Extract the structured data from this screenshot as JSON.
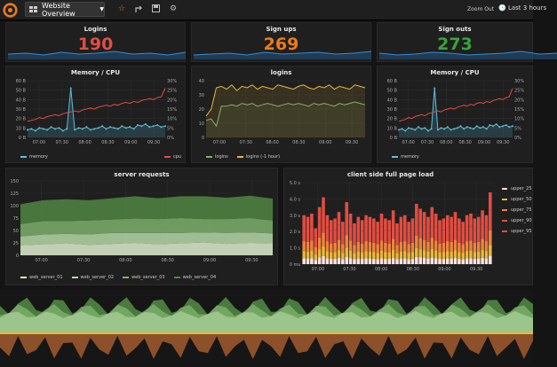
{
  "nav": {
    "dashboard_title": "Website Overview",
    "zoom_out": "Zoom Out",
    "time_range": "Last 3 hours"
  },
  "stats": [
    {
      "title": "Logins",
      "value": "190",
      "color": "#e24d42"
    },
    {
      "title": "Sign ups",
      "value": "269",
      "color": "#eb7b18"
    },
    {
      "title": "Sign outs",
      "value": "273",
      "color": "#37a537"
    }
  ],
  "chart_data": [
    {
      "type": "line",
      "title": "Memory / CPU",
      "left_axis": [
        "60 B",
        "50 B",
        "40 B",
        "30 B",
        "20 B",
        "10 B",
        "0 B"
      ],
      "right_axis": [
        "30%",
        "25%",
        "20%",
        "15%",
        "10%",
        "5%",
        "0%"
      ],
      "x_ticks": [
        "07:00",
        "07:30",
        "08:00",
        "08:30",
        "09:00",
        "09:30"
      ],
      "series": [
        {
          "name": "memory",
          "color": "#5bc0de",
          "values": [
            8,
            9,
            7,
            10,
            9,
            8,
            11,
            9,
            10,
            7,
            9,
            52,
            8,
            10,
            9,
            11,
            8,
            9,
            10,
            12,
            9,
            11,
            10,
            9,
            12,
            10,
            11,
            9,
            13,
            12,
            14,
            11,
            12,
            13,
            11,
            12
          ]
        },
        {
          "name": "cpu",
          "color": "#e24d42",
          "values": [
            17,
            18,
            19,
            21,
            20,
            22,
            23,
            24,
            23,
            25,
            26,
            27,
            28,
            27,
            29,
            30,
            31,
            30,
            32,
            33,
            34,
            33,
            35,
            34,
            36,
            37,
            36,
            38,
            37,
            39,
            40,
            41,
            40,
            42,
            43,
            52
          ]
        }
      ]
    },
    {
      "type": "line",
      "title": "logins",
      "y_ticks": [
        "40",
        "30",
        "20",
        "10",
        "0"
      ],
      "x_ticks": [
        "07:00",
        "07:30",
        "08:00",
        "08:30",
        "09:00",
        "09:30"
      ],
      "series": [
        {
          "name": "logins",
          "color": "#7eb26d",
          "values": [
            12,
            13,
            8,
            22,
            22,
            23,
            22,
            24,
            23,
            24,
            22,
            23,
            24,
            23,
            22,
            23,
            24,
            23,
            24,
            23,
            22,
            24,
            23,
            24,
            23,
            22,
            24,
            23,
            24,
            25,
            24,
            23
          ]
        },
        {
          "name": "logins (-1 hour)",
          "color": "#eab839",
          "values": [
            15,
            20,
            35,
            36,
            34,
            37,
            33,
            36,
            35,
            37,
            34,
            36,
            35,
            34,
            37,
            36,
            35,
            34,
            36,
            37,
            35,
            34,
            36,
            35,
            37,
            34,
            36,
            35,
            34,
            37,
            36,
            35
          ]
        }
      ]
    },
    {
      "type": "line",
      "title": "Memory / CPU",
      "left_axis": [
        "60 B",
        "50 B",
        "40 B",
        "30 B",
        "20 B",
        "10 B",
        "0 B"
      ],
      "right_axis": [
        "30%",
        "25%",
        "20%",
        "15%",
        "10%",
        "5%",
        "0%"
      ],
      "x_ticks": [
        "07:00",
        "07:30",
        "08:00",
        "08:30",
        "09:00",
        "09:30"
      ],
      "series": [
        {
          "name": "memory",
          "color": "#5bc0de",
          "values": [
            8,
            9,
            7,
            10,
            9,
            8,
            11,
            9,
            10,
            7,
            9,
            52,
            8,
            10,
            9,
            11,
            8,
            9,
            10,
            12,
            9,
            11,
            10,
            9,
            12,
            10,
            11,
            9,
            13,
            12,
            14,
            11,
            12,
            13,
            11,
            12
          ]
        },
        {
          "name": "cpu",
          "color": "#e24d42",
          "values": [
            17,
            18,
            19,
            21,
            20,
            22,
            23,
            24,
            23,
            25,
            26,
            27,
            28,
            27,
            29,
            30,
            31,
            30,
            32,
            33,
            34,
            33,
            35,
            34,
            36,
            37,
            36,
            38,
            37,
            39,
            40,
            41,
            40,
            42,
            43,
            52
          ]
        }
      ]
    },
    {
      "type": "area",
      "title": "server requests",
      "y_ticks": [
        "150",
        "125",
        "100",
        "75",
        "50",
        "25",
        "0"
      ],
      "x_ticks": [
        "07:00",
        "07:30",
        "08:00",
        "08:30",
        "09:00",
        "09:30"
      ],
      "series": [
        {
          "name": "web_server_01",
          "color": "#e0f0d0",
          "values": [
            20,
            22,
            24,
            21,
            23,
            25,
            22,
            24,
            26,
            23,
            25,
            24
          ]
        },
        {
          "name": "web_server_02",
          "color": "#b7dba8",
          "values": [
            18,
            20,
            19,
            21,
            22,
            20,
            23,
            21,
            20,
            22,
            21,
            20
          ]
        },
        {
          "name": "web_server_03",
          "color": "#7eb26d",
          "values": [
            25,
            27,
            26,
            28,
            27,
            29,
            28,
            30,
            27,
            28,
            29,
            26
          ]
        },
        {
          "name": "web_server_04",
          "color": "#508642",
          "values": [
            40,
            42,
            44,
            41,
            43,
            45,
            42,
            44,
            46,
            43,
            45,
            44
          ]
        }
      ]
    },
    {
      "type": "bar",
      "title": "client side full page load",
      "y_ticks": [
        "5.0 s",
        "4.0 s",
        "3.0 s",
        "2.0 s",
        "1.0 s",
        "0 ms"
      ],
      "x_ticks": [
        "07:00",
        "07:30",
        "08:00",
        "08:30",
        "09:00",
        "09:30"
      ],
      "series": [
        {
          "name": "upper_25",
          "color": "#fce2de"
        },
        {
          "name": "upper_50",
          "color": "#eab839"
        },
        {
          "name": "upper_75",
          "color": "#ef843c"
        },
        {
          "name": "upper_90",
          "color": "#e24d42"
        },
        {
          "name": "upper_95",
          "color": "#e24d42"
        }
      ],
      "totals": [
        3.0,
        2.9,
        3.1,
        2.2,
        3.5,
        4.1,
        3.0,
        2.7,
        2.8,
        3.2,
        2.6,
        3.8,
        3.1,
        2.5,
        2.9,
        2.7,
        3.0,
        2.9,
        2.8,
        2.6,
        3.1,
        2.8,
        2.7,
        3.3,
        2.5,
        2.9,
        3.0,
        2.6,
        2.8,
        3.7,
        3.4,
        3.2,
        2.9,
        3.5,
        3.1,
        2.7,
        2.8,
        3.0,
        2.9,
        3.2,
        2.8,
        2.6,
        3.0,
        3.1,
        2.8,
        2.9,
        3.3,
        3.0,
        4.4
      ]
    }
  ]
}
